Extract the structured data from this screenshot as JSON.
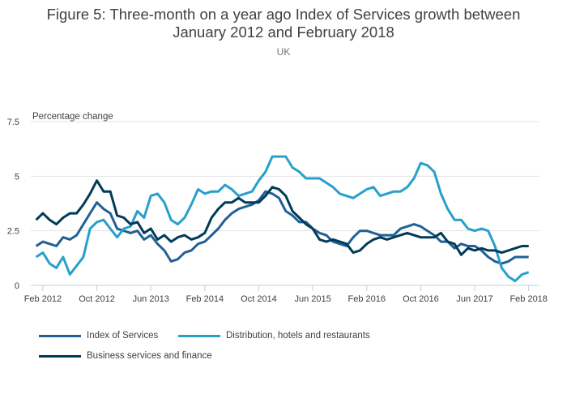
{
  "chart_data": {
    "type": "line",
    "title": "Figure 5: Three-month on a year ago Index of Services growth between January 2012 and February 2018",
    "title_lines": [
      "Figure 5: Three-month on a year ago Index of Services growth between",
      "January 2012 and February 2018"
    ],
    "subtitle": "UK",
    "ylabel": "Percentage change",
    "xlabel": "",
    "ylim": [
      0,
      7.5
    ],
    "yticks": [
      0,
      2.5,
      5,
      7.5
    ],
    "ytick_labels": [
      "0",
      "2.5",
      "5",
      "7.5"
    ],
    "x_start": "Jan 2012",
    "x_end": "Feb 2018",
    "x_tick_labels": [
      "Feb 2012",
      "Oct 2012",
      "Jun 2013",
      "Feb 2014",
      "Oct 2014",
      "Jun 2015",
      "Feb 2016",
      "Oct 2016",
      "Jun 2017",
      "Feb 2018"
    ],
    "x_tick_month_index": [
      1,
      9,
      17,
      25,
      33,
      41,
      49,
      57,
      65,
      73
    ],
    "grid": "horizontal",
    "legend_position": "bottom",
    "series": [
      {
        "name": "Index of Services",
        "color": "#206095",
        "values": [
          1.8,
          2.0,
          1.9,
          1.8,
          2.2,
          2.1,
          2.3,
          2.8,
          3.3,
          3.8,
          3.5,
          3.3,
          2.6,
          2.5,
          2.4,
          2.5,
          2.1,
          2.3,
          1.9,
          1.6,
          1.1,
          1.2,
          1.5,
          1.6,
          1.9,
          2.0,
          2.3,
          2.6,
          3.0,
          3.3,
          3.5,
          3.6,
          3.7,
          3.9,
          4.3,
          4.2,
          4.0,
          3.4,
          3.2,
          2.9,
          2.9,
          2.6,
          2.4,
          2.3,
          2.0,
          1.9,
          1.8,
          2.2,
          2.5,
          2.5,
          2.4,
          2.3,
          2.3,
          2.3,
          2.6,
          2.7,
          2.8,
          2.7,
          2.5,
          2.3,
          2.0,
          2.0,
          1.7,
          1.9,
          1.8,
          1.8,
          1.6,
          1.3,
          1.1,
          1.0,
          1.1,
          1.3,
          1.3,
          1.3
        ]
      },
      {
        "name": "Distribution, hotels and restaurants",
        "color": "#27a0cc",
        "values": [
          1.3,
          1.5,
          1.0,
          0.8,
          1.3,
          0.5,
          0.9,
          1.3,
          2.6,
          2.9,
          3.0,
          2.6,
          2.2,
          2.6,
          2.7,
          3.4,
          3.1,
          4.1,
          4.2,
          3.8,
          3.0,
          2.8,
          3.1,
          3.7,
          4.4,
          4.2,
          4.3,
          4.3,
          4.6,
          4.4,
          4.1,
          4.2,
          4.3,
          4.8,
          5.2,
          5.9,
          5.9,
          5.9,
          5.4,
          5.2,
          4.9,
          4.9,
          4.9,
          4.7,
          4.5,
          4.2,
          4.1,
          4.0,
          4.2,
          4.4,
          4.5,
          4.1,
          4.2,
          4.3,
          4.3,
          4.5,
          4.9,
          5.6,
          5.5,
          5.2,
          4.2,
          3.5,
          3.0,
          3.0,
          2.6,
          2.5,
          2.6,
          2.5,
          1.8,
          0.8,
          0.4,
          0.2,
          0.5,
          0.6
        ]
      },
      {
        "name": "Business services and finance",
        "color": "#003c57",
        "values": [
          3.0,
          3.3,
          3.0,
          2.8,
          3.1,
          3.3,
          3.3,
          3.7,
          4.2,
          4.8,
          4.3,
          4.3,
          3.2,
          3.1,
          2.8,
          2.9,
          2.4,
          2.6,
          2.1,
          2.3,
          2.0,
          2.2,
          2.3,
          2.1,
          2.2,
          2.4,
          3.1,
          3.5,
          3.8,
          3.8,
          4.0,
          3.8,
          3.8,
          3.8,
          4.1,
          4.5,
          4.4,
          4.1,
          3.4,
          3.1,
          2.8,
          2.6,
          2.1,
          2.0,
          2.1,
          2.0,
          1.9,
          1.5,
          1.6,
          1.9,
          2.1,
          2.2,
          2.1,
          2.2,
          2.3,
          2.4,
          2.3,
          2.2,
          2.2,
          2.2,
          2.4,
          2.0,
          1.9,
          1.4,
          1.7,
          1.6,
          1.7,
          1.6,
          1.6,
          1.5,
          1.6,
          1.7,
          1.8,
          1.8
        ]
      }
    ]
  }
}
